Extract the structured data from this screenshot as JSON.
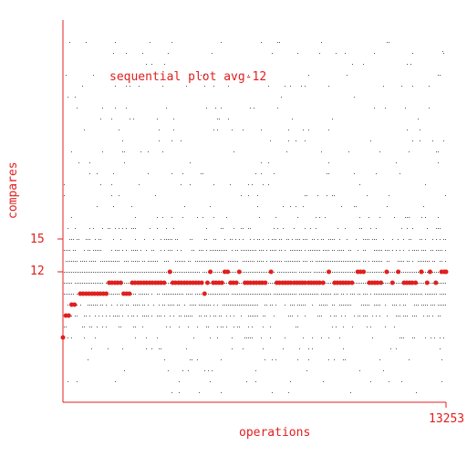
{
  "chart_data": {
    "type": "scatter",
    "title": "sequential plot avg-12",
    "xlabel": "operations",
    "ylabel": "compares",
    "x_tick_labels": [
      "13253"
    ],
    "y_tick_labels": [
      "15",
      "12"
    ],
    "xlim": [
      0,
      13253
    ],
    "ylim": [
      0,
      33
    ],
    "grid": false,
    "series": [
      {
        "role": "running-average",
        "color": "#e0201e",
        "points": [
          [
            0,
            6
          ],
          [
            100,
            8
          ],
          [
            200,
            8
          ],
          [
            300,
            9
          ],
          [
            400,
            9
          ],
          [
            600,
            10
          ],
          [
            800,
            10
          ],
          [
            1000,
            10
          ],
          [
            1200,
            10
          ],
          [
            1400,
            10
          ],
          [
            1500,
            10
          ],
          [
            1600,
            11
          ],
          [
            1800,
            11
          ],
          [
            2000,
            11
          ],
          [
            2100,
            10
          ],
          [
            2200,
            10
          ],
          [
            2300,
            10
          ],
          [
            2400,
            11
          ],
          [
            2600,
            11
          ],
          [
            2800,
            11
          ],
          [
            3000,
            11
          ],
          [
            3200,
            11
          ],
          [
            3500,
            11
          ],
          [
            3700,
            12
          ],
          [
            3800,
            11
          ],
          [
            4000,
            11
          ],
          [
            4200,
            11
          ],
          [
            4400,
            11
          ],
          [
            4500,
            11
          ],
          [
            4600,
            11
          ],
          [
            4800,
            11
          ],
          [
            4900,
            10
          ],
          [
            5000,
            11
          ],
          [
            5100,
            12
          ],
          [
            5200,
            11
          ],
          [
            5400,
            11
          ],
          [
            5500,
            11
          ],
          [
            5600,
            12
          ],
          [
            5700,
            12
          ],
          [
            5800,
            11
          ],
          [
            6000,
            11
          ],
          [
            6100,
            12
          ],
          [
            6300,
            11
          ],
          [
            6600,
            11
          ],
          [
            6800,
            11
          ],
          [
            7000,
            11
          ],
          [
            7200,
            12
          ],
          [
            7400,
            11
          ],
          [
            7600,
            11
          ],
          [
            8000,
            11
          ],
          [
            8500,
            11
          ],
          [
            9000,
            11
          ],
          [
            9200,
            12
          ],
          [
            9400,
            11
          ],
          [
            9600,
            11
          ],
          [
            10000,
            11
          ],
          [
            10200,
            12
          ],
          [
            10400,
            12
          ],
          [
            10600,
            11
          ],
          [
            11000,
            11
          ],
          [
            11200,
            12
          ],
          [
            11400,
            11
          ],
          [
            11600,
            12
          ],
          [
            11800,
            11
          ],
          [
            12200,
            11
          ],
          [
            12400,
            12
          ],
          [
            12600,
            11
          ],
          [
            12700,
            12
          ],
          [
            12900,
            11
          ],
          [
            13100,
            12
          ],
          [
            13253,
            12
          ]
        ]
      },
      {
        "role": "individual-operations",
        "color": "#000000",
        "min_value": 1,
        "max_value": 33
      }
    ]
  }
}
